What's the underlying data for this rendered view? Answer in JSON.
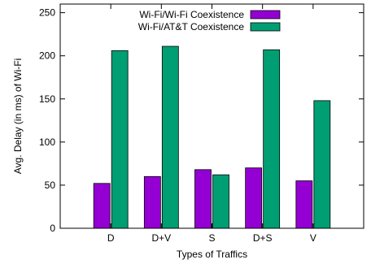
{
  "chart_data": {
    "type": "bar",
    "xlabel": "Types of Traffics",
    "ylabel": "Avg. Delay (in ms) of  Wi-Fi",
    "categories": [
      "D",
      "D+V",
      "S",
      "D+S",
      "V"
    ],
    "ylim": [
      0,
      260
    ],
    "yticks": [
      0,
      50,
      100,
      150,
      200,
      250
    ],
    "grid": false,
    "legend_position": "top-right",
    "series": [
      {
        "name": "Wi-Fi/Wi-Fi Coexistence",
        "color": "#9400d3",
        "values": [
          52,
          60,
          68,
          70,
          55
        ]
      },
      {
        "name": "Wi-Fi/AT&T Coexistence",
        "color": "#009e73",
        "values": [
          206,
          211,
          62,
          207,
          148
        ]
      }
    ]
  }
}
